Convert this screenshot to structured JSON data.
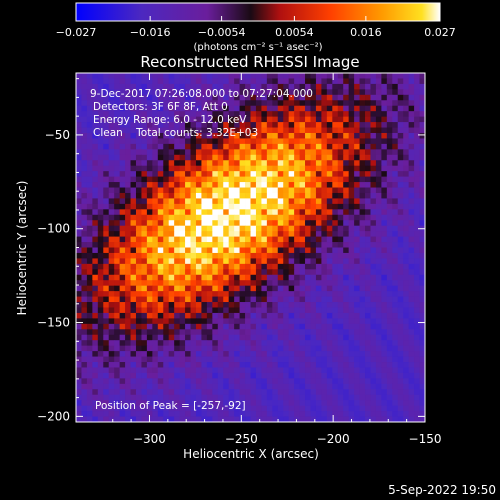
{
  "chart_data": {
    "type": "heatmap",
    "title": "Reconstructed RHESSI Image",
    "xlabel": "Heliocentric X (arcsec)",
    "ylabel": "Heliocentric Y (arcsec)",
    "xlim": [
      -340,
      -150
    ],
    "ylim": [
      -203,
      -17
    ],
    "xticks": [
      -300,
      -250,
      -200,
      -150
    ],
    "yticks": [
      -50,
      -100,
      -150,
      -200
    ],
    "colorbar": {
      "range": [
        -0.027,
        0.027
      ],
      "ticks": [
        -0.027,
        -0.016,
        -0.0054,
        0.0054,
        0.016,
        0.027
      ],
      "tick_labels": [
        "−0.027",
        "−0.016",
        "−0.0054",
        "0.0054",
        "0.016",
        "0.027"
      ],
      "unit_label": "(photons cm⁻² s⁻¹ asec⁻²)"
    },
    "annotations": [
      "9-Dec-2017 07:26:08.000 to 07:27:04.000",
      "Detectors: 3F 6F 8F, Att 0",
      "Energy Range: 6.0 - 12.0 keV",
      "Clean    Total counts: 3.32E+03"
    ],
    "peak_label": "Position of Peak = [-257,-92]",
    "peak_position": [
      -257,
      -92
    ],
    "source_orientation_deg": -35,
    "colormap": [
      "#0000ff",
      "#4c28c0",
      "#6a1e9c",
      "#201020",
      "#c01818",
      "#ff4000",
      "#ff9000",
      "#ffd010",
      "#ffffff"
    ]
  },
  "footer": {
    "date": "5-Sep-2022 19:50"
  }
}
